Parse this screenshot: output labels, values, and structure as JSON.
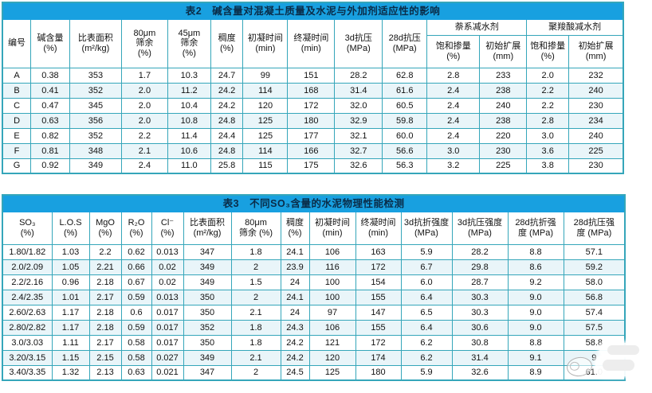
{
  "colors": {
    "title_bar": "#18a0e0",
    "title_text": "#0a2c48",
    "grid_border": "#35a6ba",
    "row_alt_bg": "#e9f5f9",
    "text": "#111111"
  },
  "table2": {
    "title": "表2　碱含量对混凝土质量及水泥与外加剂适应性的影响",
    "headers": [
      "编号",
      "碱含量\n(%)",
      "比表面积\n(m²/kg)",
      "80μm\n筛余\n(%)",
      "45μm\n筛余\n(%)",
      "稠度\n(%)",
      "初凝时间\n(min)",
      "终凝时间\n(min)",
      "3d抗压\n(MPa)",
      "28d抗压\n(MPa)"
    ],
    "groups": [
      "萘系减水剂",
      "聚羧酸减水剂"
    ],
    "sub_headers": [
      "饱和掺量\n(%)",
      "初始扩展\n(mm)",
      "饱和掺量\n(%)",
      "初始扩展\n(mm)"
    ],
    "rows": [
      [
        "A",
        "0.38",
        "353",
        "1.7",
        "10.3",
        "24.7",
        "99",
        "151",
        "28.2",
        "62.8",
        "2.8",
        "233",
        "2.0",
        "232"
      ],
      [
        "B",
        "0.41",
        "352",
        "2.0",
        "11.2",
        "24.2",
        "114",
        "168",
        "31.4",
        "61.6",
        "2.4",
        "238",
        "2.2",
        "240"
      ],
      [
        "C",
        "0.47",
        "345",
        "2.0",
        "10.4",
        "24.2",
        "120",
        "172",
        "32.0",
        "60.5",
        "2.4",
        "240",
        "2.2",
        "230"
      ],
      [
        "D",
        "0.63",
        "356",
        "2.0",
        "10.8",
        "24.8",
        "125",
        "180",
        "32.9",
        "59.8",
        "2.4",
        "238",
        "2.8",
        "234"
      ],
      [
        "E",
        "0.82",
        "352",
        "2.2",
        "11.4",
        "24.4",
        "125",
        "177",
        "32.1",
        "60.0",
        "2.4",
        "220",
        "3.0",
        "240"
      ],
      [
        "F",
        "0.81",
        "348",
        "2.1",
        "10.6",
        "24.8",
        "114",
        "166",
        "32.7",
        "56.6",
        "3.0",
        "230",
        "3.6",
        "225"
      ],
      [
        "G",
        "0.92",
        "349",
        "2.4",
        "11.0",
        "25.8",
        "115",
        "175",
        "32.6",
        "56.3",
        "3.2",
        "225",
        "3.8",
        "230"
      ]
    ]
  },
  "table3": {
    "title": "表3　不同SO₃含量的水泥物理性能检测",
    "headers": [
      "SO₃\n(%)",
      "L.O.S\n(%)",
      "MgO\n(%)",
      "R₂O\n(%)",
      "Cl⁻\n(%)",
      "比表面积\n(m²/kg)",
      "80μm\n筛余 (%)",
      "稠度\n(%)",
      "初凝时间\n(min)",
      "终凝时间\n(min)",
      "3d抗折强度\n(MPa)",
      "3d抗压强度\n(MPa)",
      "28d抗折强\n度 (MPa)",
      "28d抗压强\n度 (MPa)"
    ],
    "rows": [
      [
        "1.80/1.82",
        "1.03",
        "2.2",
        "0.62",
        "0.013",
        "347",
        "1.8",
        "24.1",
        "106",
        "163",
        "5.9",
        "28.2",
        "8.8",
        "57.1"
      ],
      [
        "2.0/2.09",
        "1.05",
        "2.21",
        "0.66",
        "0.02",
        "349",
        "2",
        "23.9",
        "116",
        "172",
        "6.7",
        "29.8",
        "8.6",
        "59.2"
      ],
      [
        "2.2/2.16",
        "0.96",
        "2.18",
        "0.67",
        "0.02",
        "349",
        "1.5",
        "24",
        "100",
        "154",
        "6.0",
        "28.7",
        "9.2",
        "58.0"
      ],
      [
        "2.4/2.35",
        "1.01",
        "2.17",
        "0.59",
        "0.013",
        "350",
        "2",
        "24.1",
        "100",
        "155",
        "6.4",
        "30.3",
        "9.0",
        "56.8"
      ],
      [
        "2.60/2.63",
        "1.17",
        "2.18",
        "0.6",
        "0.017",
        "350",
        "2.1",
        "24",
        "97",
        "147",
        "6.5",
        "30.3",
        "9.0",
        "57.4"
      ],
      [
        "2.80/2.82",
        "1.17",
        "2.18",
        "0.59",
        "0.017",
        "352",
        "1.8",
        "24.3",
        "106",
        "155",
        "6.4",
        "30.6",
        "9.0",
        "57.5"
      ],
      [
        "3.0/3.03",
        "1.11",
        "2.17",
        "0.58",
        "0.017",
        "350",
        "1.8",
        "24.2",
        "121",
        "172",
        "6.2",
        "30.8",
        "8.8",
        "58.8"
      ],
      [
        "3.20/3.15",
        "1.15",
        "2.15",
        "0.58",
        "0.027",
        "349",
        "2.1",
        "24.2",
        "120",
        "174",
        "6.2",
        "31.4",
        "9.1",
        "9"
      ],
      [
        "3.40/3.35",
        "1.32",
        "2.13",
        "0.63",
        "0.021",
        "347",
        "2",
        "24.5",
        "125",
        "180",
        "5.9",
        "32.6",
        "8.9",
        "61.0"
      ]
    ]
  }
}
